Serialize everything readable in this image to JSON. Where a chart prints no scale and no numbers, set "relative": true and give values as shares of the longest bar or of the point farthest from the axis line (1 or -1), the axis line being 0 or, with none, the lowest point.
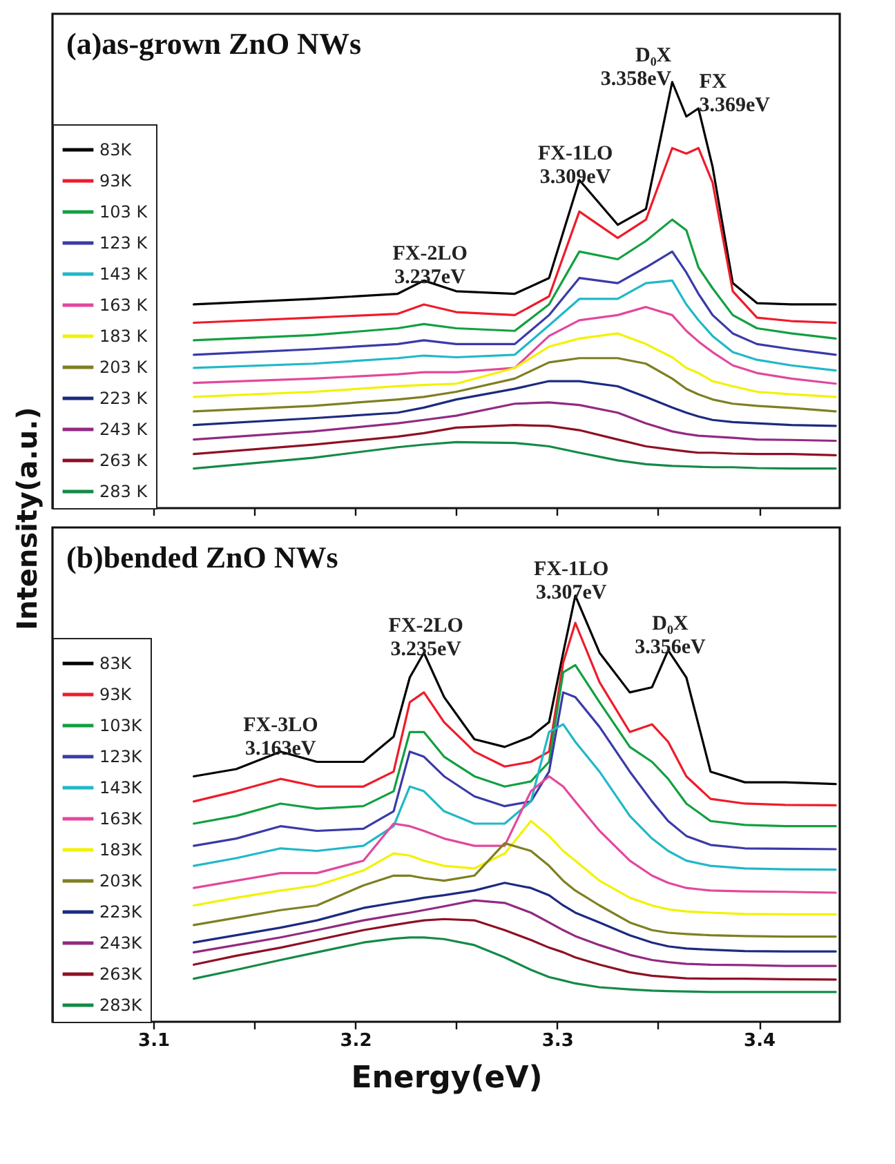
{
  "chart_data": [
    {
      "type": "line",
      "title": "(a)as-grown ZnO NWs",
      "ylabel": "Intensity(a.u.)",
      "relative": true,
      "legend": "bottom left",
      "tick_labels": false,
      "xlim": [
        3.05,
        3.44
      ],
      "xticks": [
        3.1,
        {
          "value": 3.15,
          "label": null
        },
        3.2,
        {
          "value": 3.25,
          "label": null
        },
        3.3,
        {
          "value": 3.35,
          "label": null
        },
        3.4
      ],
      "x": [
        3.12,
        3.179,
        3.221,
        3.234,
        3.25,
        3.279,
        3.296,
        3.311,
        3.33,
        3.344,
        3.357,
        3.364,
        3.37,
        3.377,
        3.387,
        3.399,
        3.416,
        3.438
      ],
      "annotations": [
        {
          "text": "FX-2LO\n3.237eV",
          "x": 3.237,
          "y": 0.534
        },
        {
          "text": "FX-1LO\n3.309eV",
          "x": 3.309,
          "y": 0.77
        },
        {
          "text": "D₀X\n3.358eV",
          "x": 3.358,
          "y": 1.0
        },
        {
          "text": "FX\n3.369eV",
          "x": 3.369,
          "y": 0.938
        }
      ],
      "series": [
        {
          "name": "83K",
          "color": "#000000",
          "values": [
            0.478,
            0.491,
            0.503,
            0.534,
            0.509,
            0.503,
            0.54,
            0.77,
            0.665,
            0.702,
            1.0,
            0.919,
            0.938,
            0.801,
            0.528,
            0.481,
            0.478,
            0.478
          ]
        },
        {
          "name": "93K",
          "color": "#ee1c2a",
          "values": [
            0.435,
            0.447,
            0.456,
            0.478,
            0.46,
            0.453,
            0.497,
            0.696,
            0.634,
            0.677,
            0.845,
            0.832,
            0.845,
            0.764,
            0.509,
            0.447,
            0.439,
            0.435
          ]
        },
        {
          "name": "103 K",
          "color": "#12a040",
          "values": [
            0.394,
            0.406,
            0.422,
            0.432,
            0.422,
            0.416,
            0.478,
            0.602,
            0.584,
            0.627,
            0.677,
            0.652,
            0.565,
            0.516,
            0.453,
            0.422,
            0.41,
            0.398
          ]
        },
        {
          "name": "123 K",
          "color": "#3a3aa8",
          "values": [
            0.36,
            0.373,
            0.385,
            0.394,
            0.385,
            0.385,
            0.453,
            0.54,
            0.528,
            0.565,
            0.602,
            0.553,
            0.503,
            0.453,
            0.41,
            0.385,
            0.373,
            0.36
          ]
        },
        {
          "name": "143 K",
          "color": "#20b8c8",
          "values": [
            0.329,
            0.339,
            0.352,
            0.358,
            0.354,
            0.36,
            0.429,
            0.491,
            0.491,
            0.528,
            0.534,
            0.478,
            0.441,
            0.404,
            0.366,
            0.348,
            0.335,
            0.323
          ]
        },
        {
          "name": "163 K",
          "color": "#e2489c",
          "values": [
            0.294,
            0.304,
            0.314,
            0.319,
            0.319,
            0.329,
            0.404,
            0.441,
            0.453,
            0.472,
            0.453,
            0.416,
            0.391,
            0.366,
            0.335,
            0.317,
            0.304,
            0.292
          ]
        },
        {
          "name": "183 K",
          "color": "#f2f200",
          "values": [
            0.261,
            0.273,
            0.286,
            0.289,
            0.292,
            0.329,
            0.379,
            0.398,
            0.41,
            0.385,
            0.354,
            0.329,
            0.317,
            0.298,
            0.286,
            0.273,
            0.267,
            0.261
          ]
        },
        {
          "name": "203 K",
          "color": "#7f7f22",
          "values": [
            0.227,
            0.24,
            0.255,
            0.261,
            0.273,
            0.304,
            0.342,
            0.352,
            0.352,
            0.339,
            0.304,
            0.28,
            0.267,
            0.255,
            0.245,
            0.24,
            0.235,
            0.227
          ]
        },
        {
          "name": "223 K",
          "color": "#1c2a80",
          "values": [
            0.195,
            0.211,
            0.224,
            0.236,
            0.255,
            0.28,
            0.298,
            0.298,
            0.286,
            0.261,
            0.236,
            0.224,
            0.215,
            0.207,
            0.202,
            0.199,
            0.195,
            0.193
          ]
        },
        {
          "name": "243 K",
          "color": "#922a82",
          "values": [
            0.161,
            0.18,
            0.199,
            0.207,
            0.217,
            0.245,
            0.248,
            0.242,
            0.224,
            0.199,
            0.18,
            0.174,
            0.17,
            0.168,
            0.165,
            0.161,
            0.16,
            0.158
          ]
        },
        {
          "name": "263 K",
          "color": "#8e1024",
          "values": [
            0.127,
            0.149,
            0.168,
            0.176,
            0.189,
            0.195,
            0.193,
            0.183,
            0.161,
            0.145,
            0.137,
            0.133,
            0.13,
            0.13,
            0.128,
            0.127,
            0.127,
            0.124
          ]
        },
        {
          "name": "283 K",
          "color": "#148a48",
          "values": [
            0.093,
            0.118,
            0.143,
            0.149,
            0.155,
            0.153,
            0.145,
            0.13,
            0.112,
            0.103,
            0.099,
            0.098,
            0.097,
            0.096,
            0.096,
            0.094,
            0.093,
            0.093
          ]
        }
      ]
    },
    {
      "type": "line",
      "title": "(b)bended ZnO NWs",
      "xlabel": "Energy(eV)",
      "relative": true,
      "legend": "bottom left",
      "tick_labels": "x",
      "xlim": [
        3.05,
        3.44
      ],
      "xticks": [
        3.1,
        {
          "value": 3.15,
          "label": null
        },
        3.2,
        {
          "value": 3.25,
          "label": null
        },
        3.3,
        {
          "value": 3.35,
          "label": null
        },
        3.4
      ],
      "x": [
        3.12,
        3.141,
        3.163,
        3.181,
        3.204,
        3.219,
        3.227,
        3.234,
        3.244,
        3.259,
        3.274,
        3.287,
        3.296,
        3.303,
        3.309,
        3.321,
        3.336,
        3.347,
        3.355,
        3.364,
        3.376,
        3.393,
        3.413,
        3.438
      ],
      "annotations": [
        {
          "text": "FX-3LO\n3.163eV",
          "x": 3.163,
          "y": 0.634
        },
        {
          "text": "FX-2LO\n3.235eV",
          "x": 3.235,
          "y": 0.866
        },
        {
          "text": "FX-1LO\n3.307eV",
          "x": 3.307,
          "y": 1.0
        },
        {
          "text": "D₀X\n3.356eV",
          "x": 3.356,
          "y": 0.872
        }
      ],
      "series": [
        {
          "name": "83K",
          "color": "#000000",
          "values": [
            0.576,
            0.593,
            0.634,
            0.61,
            0.61,
            0.669,
            0.808,
            0.866,
            0.762,
            0.663,
            0.645,
            0.669,
            0.703,
            0.866,
            1.0,
            0.866,
            0.773,
            0.785,
            0.872,
            0.808,
            0.587,
            0.562,
            0.562,
            0.558
          ]
        },
        {
          "name": "93K",
          "color": "#ee1c2a",
          "values": [
            0.517,
            0.541,
            0.57,
            0.552,
            0.552,
            0.587,
            0.75,
            0.773,
            0.703,
            0.634,
            0.599,
            0.61,
            0.634,
            0.843,
            0.936,
            0.797,
            0.68,
            0.698,
            0.657,
            0.576,
            0.523,
            0.512,
            0.509,
            0.508
          ]
        },
        {
          "name": "103K",
          "color": "#12a040",
          "values": [
            0.465,
            0.483,
            0.512,
            0.5,
            0.506,
            0.541,
            0.68,
            0.68,
            0.622,
            0.576,
            0.552,
            0.564,
            0.61,
            0.82,
            0.837,
            0.75,
            0.645,
            0.61,
            0.57,
            0.512,
            0.471,
            0.462,
            0.459,
            0.459
          ]
        },
        {
          "name": "123K",
          "color": "#3a3aa8",
          "values": [
            0.413,
            0.43,
            0.459,
            0.448,
            0.453,
            0.494,
            0.634,
            0.622,
            0.576,
            0.529,
            0.506,
            0.517,
            0.587,
            0.773,
            0.762,
            0.692,
            0.587,
            0.517,
            0.471,
            0.436,
            0.415,
            0.407,
            0.406,
            0.405
          ]
        },
        {
          "name": "143K",
          "color": "#20b8c8",
          "values": [
            0.366,
            0.384,
            0.407,
            0.401,
            0.413,
            0.459,
            0.552,
            0.541,
            0.494,
            0.465,
            0.465,
            0.517,
            0.68,
            0.698,
            0.657,
            0.587,
            0.483,
            0.43,
            0.401,
            0.378,
            0.366,
            0.36,
            0.358,
            0.357
          ]
        },
        {
          "name": "163K",
          "color": "#e2489c",
          "values": [
            0.314,
            0.331,
            0.349,
            0.349,
            0.378,
            0.465,
            0.459,
            0.448,
            0.43,
            0.413,
            0.413,
            0.541,
            0.576,
            0.552,
            0.517,
            0.448,
            0.378,
            0.343,
            0.326,
            0.314,
            0.308,
            0.306,
            0.305,
            0.303
          ]
        },
        {
          "name": "183K",
          "color": "#f2f200",
          "values": [
            0.273,
            0.291,
            0.308,
            0.32,
            0.355,
            0.395,
            0.39,
            0.378,
            0.366,
            0.36,
            0.395,
            0.471,
            0.436,
            0.401,
            0.378,
            0.331,
            0.291,
            0.273,
            0.264,
            0.259,
            0.256,
            0.253,
            0.252,
            0.252
          ]
        },
        {
          "name": "203K",
          "color": "#7f7f22",
          "values": [
            0.227,
            0.244,
            0.262,
            0.273,
            0.32,
            0.343,
            0.343,
            0.337,
            0.331,
            0.343,
            0.419,
            0.401,
            0.366,
            0.331,
            0.308,
            0.273,
            0.233,
            0.215,
            0.209,
            0.206,
            0.203,
            0.201,
            0.2,
            0.2
          ]
        },
        {
          "name": "223K",
          "color": "#1c2a80",
          "values": [
            0.186,
            0.203,
            0.221,
            0.238,
            0.267,
            0.279,
            0.285,
            0.291,
            0.297,
            0.308,
            0.326,
            0.314,
            0.297,
            0.273,
            0.256,
            0.233,
            0.203,
            0.186,
            0.177,
            0.172,
            0.169,
            0.166,
            0.165,
            0.165
          ]
        },
        {
          "name": "243K",
          "color": "#922a82",
          "values": [
            0.163,
            0.18,
            0.198,
            0.215,
            0.238,
            0.25,
            0.256,
            0.262,
            0.271,
            0.285,
            0.279,
            0.256,
            0.233,
            0.215,
            0.201,
            0.18,
            0.157,
            0.145,
            0.14,
            0.136,
            0.134,
            0.133,
            0.131,
            0.131
          ]
        },
        {
          "name": "263K",
          "color": "#8e1024",
          "values": [
            0.134,
            0.155,
            0.174,
            0.192,
            0.215,
            0.227,
            0.233,
            0.238,
            0.241,
            0.238,
            0.215,
            0.192,
            0.174,
            0.163,
            0.151,
            0.134,
            0.116,
            0.108,
            0.105,
            0.102,
            0.101,
            0.101,
            0.1,
            0.099
          ]
        },
        {
          "name": "283K",
          "color": "#148a48",
          "values": [
            0.101,
            0.122,
            0.145,
            0.163,
            0.186,
            0.195,
            0.198,
            0.198,
            0.194,
            0.18,
            0.151,
            0.122,
            0.105,
            0.097,
            0.09,
            0.081,
            0.076,
            0.073,
            0.072,
            0.071,
            0.07,
            0.07,
            0.07,
            0.07
          ]
        }
      ]
    }
  ]
}
